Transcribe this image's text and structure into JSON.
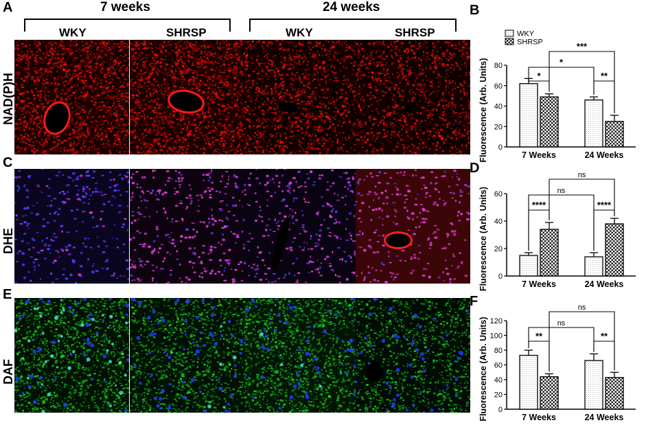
{
  "panel_letters": {
    "a": "A",
    "b": "B",
    "c": "C",
    "d": "D",
    "e": "E",
    "f": "F"
  },
  "group_headers": {
    "left": "7 weeks",
    "right": "24 weeks"
  },
  "column_labels": [
    "WKY",
    "SHRSP",
    "WKY",
    "SHRSP"
  ],
  "row_labels": [
    "NAD(P)H",
    "DHE",
    "DAF"
  ],
  "colors": {
    "nadph_stain": "#e01010",
    "dhe_blue": "#5a3cff",
    "dhe_magenta": "#e23cd8",
    "daf_green": "#2fbf3a",
    "daf_nuclei": "#1c3cff"
  },
  "chart_data": [
    {
      "type": "bar",
      "panel": "B",
      "categories": [
        "7 Weeks",
        "24 Weeks"
      ],
      "series": [
        {
          "name": "WKY",
          "values": [
            62,
            46
          ],
          "errors": [
            5,
            3
          ]
        },
        {
          "name": "SHRSP",
          "values": [
            49,
            25
          ],
          "errors": [
            3,
            6
          ]
        }
      ],
      "ylabel": "Fluorescence (Arb. Units)",
      "ylim": [
        0,
        80
      ],
      "yticks": [
        "0",
        "20",
        "40",
        "60",
        "80"
      ],
      "significance": [
        {
          "between": "7 Weeks WKY vs SHRSP",
          "label": "*"
        },
        {
          "between": "WKY 7 Weeks vs 24 Weeks",
          "label": "*"
        },
        {
          "between": "24 Weeks WKY vs SHRSP",
          "label": "**"
        },
        {
          "between": "SHRSP 7 Weeks vs 24 Weeks",
          "label": "***"
        }
      ],
      "legend": "top-left"
    },
    {
      "type": "bar",
      "panel": "D",
      "categories": [
        "7 Weeks",
        "24 Weeks"
      ],
      "series": [
        {
          "name": "WKY",
          "values": [
            15,
            14
          ],
          "errors": [
            2,
            3
          ]
        },
        {
          "name": "SHRSP",
          "values": [
            34,
            38
          ],
          "errors": [
            5,
            4
          ]
        }
      ],
      "ylabel": "Fluorescence (Arb. Units)",
      "ylim": [
        0,
        60
      ],
      "yticks": [
        "0",
        "20",
        "40",
        "60"
      ],
      "significance": [
        {
          "between": "7 Weeks WKY vs SHRSP",
          "label": "****"
        },
        {
          "between": "24 Weeks WKY vs SHRSP",
          "label": "****"
        },
        {
          "between": "WKY 7 Weeks vs 24 Weeks",
          "label": "ns"
        },
        {
          "between": "SHRSP 7 Weeks vs 24 Weeks",
          "label": "ns"
        }
      ]
    },
    {
      "type": "bar",
      "panel": "F",
      "categories": [
        "7 Weeks",
        "24 Weeks"
      ],
      "series": [
        {
          "name": "WKY",
          "values": [
            73,
            66
          ],
          "errors": [
            7,
            9
          ]
        },
        {
          "name": "SHRSP",
          "values": [
            44,
            43
          ],
          "errors": [
            4,
            7
          ]
        }
      ],
      "ylabel": "Fluorescence (Arb. Units)",
      "ylim": [
        0,
        120
      ],
      "yticks": [
        "0",
        "20",
        "40",
        "60",
        "80",
        "100",
        "120"
      ],
      "significance": [
        {
          "between": "7 Weeks WKY vs SHRSP",
          "label": "**"
        },
        {
          "between": "24 Weeks WKY vs SHRSP",
          "label": "**"
        },
        {
          "between": "WKY 7 Weeks vs 24 Weeks",
          "label": "ns"
        },
        {
          "between": "SHRSP 7 Weeks vs 24 Weeks",
          "label": "ns"
        }
      ]
    }
  ]
}
